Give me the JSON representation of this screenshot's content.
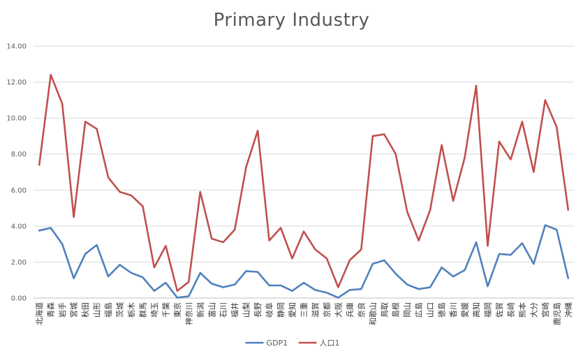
{
  "chart_data": {
    "type": "line",
    "title": "Primary Industry",
    "ylim": [
      0,
      14
    ],
    "yticks": [
      "0.00",
      "2.00",
      "4.00",
      "6.00",
      "8.00",
      "10.00",
      "12.00",
      "14.00"
    ],
    "grid": true,
    "legend_position": "bottom",
    "categories": [
      "北海道",
      "青森",
      "岩手",
      "宮城",
      "秋田",
      "山形",
      "福島",
      "茨城",
      "栃木",
      "群馬",
      "埼玉",
      "千葉",
      "東京",
      "神奈川",
      "新潟",
      "富山",
      "石川",
      "福井",
      "山梨",
      "長野",
      "岐阜",
      "静岡",
      "愛知",
      "三重",
      "滋賀",
      "京都",
      "大阪",
      "兵庫",
      "奈良",
      "和歌山",
      "鳥取",
      "島根",
      "岡山",
      "広島",
      "山口",
      "徳島",
      "香川",
      "愛媛",
      "高知",
      "福岡",
      "佐賀",
      "長崎",
      "熊本",
      "大分",
      "宮崎",
      "鹿児島",
      "沖縄"
    ],
    "series": [
      {
        "name": "GDP1",
        "color": "#4f81bd",
        "values": [
          3.75,
          3.9,
          3.0,
          1.1,
          2.45,
          2.95,
          1.2,
          1.85,
          1.4,
          1.15,
          0.4,
          0.85,
          0.02,
          0.1,
          1.4,
          0.8,
          0.6,
          0.75,
          1.5,
          1.45,
          0.7,
          0.7,
          0.4,
          0.85,
          0.45,
          0.3,
          0.02,
          0.45,
          0.5,
          1.9,
          2.1,
          1.35,
          0.75,
          0.5,
          0.6,
          1.7,
          1.2,
          1.55,
          3.1,
          0.65,
          2.45,
          2.4,
          3.05,
          1.9,
          4.05,
          3.8,
          1.1
        ]
      },
      {
        "name": "人口1",
        "color": "#c0504d",
        "values": [
          7.4,
          12.4,
          10.8,
          4.5,
          9.8,
          9.4,
          6.7,
          5.9,
          5.7,
          5.1,
          1.7,
          2.9,
          0.4,
          0.9,
          5.9,
          3.3,
          3.1,
          3.8,
          7.3,
          9.3,
          3.2,
          3.9,
          2.2,
          3.7,
          2.7,
          2.2,
          0.6,
          2.1,
          2.7,
          9.0,
          9.1,
          8.0,
          4.8,
          3.2,
          4.9,
          8.5,
          5.4,
          7.8,
          11.8,
          2.9,
          8.7,
          7.7,
          9.8,
          7.0,
          11.0,
          9.5,
          4.9
        ]
      }
    ]
  }
}
